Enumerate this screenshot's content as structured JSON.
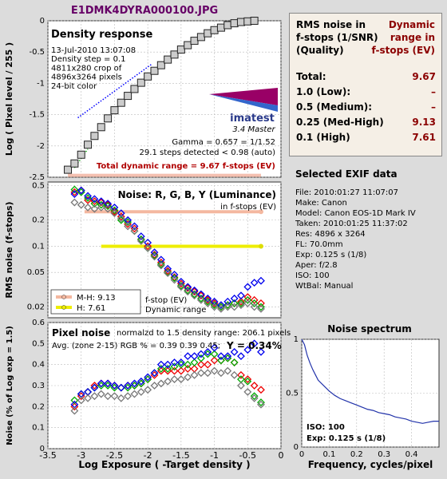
{
  "file_title": "E1DMK4DYRA000100.JPG",
  "chart_data": [
    {
      "type": "scatter",
      "title": "Density response",
      "info_lines": [
        "13-Jul-2010 13:07:08",
        "Density step = 0.1",
        "4811x280 crop of",
        "4896x3264 pixels",
        "24-bit color"
      ],
      "logo_text": "imatest",
      "logo_sub": "3.4  Master",
      "gamma_text": "Gamma = 0.657 = 1/1.52",
      "steps_text": "29.1 steps detected < 0.98 (auto)",
      "dynamic_range_text": "Total dynamic range = 9.67 f-stops (EV)",
      "ylabel": "Log ( Pixel level / 255 )",
      "xlim": [
        -3.5,
        0
      ],
      "ylim": [
        -2.5,
        0
      ],
      "yticks": [
        "0",
        "-0.5",
        "-1",
        "-1.5",
        "-2",
        "-2.5"
      ],
      "x": [
        -3.2,
        -3.1,
        -3.0,
        -2.9,
        -2.8,
        -2.7,
        -2.6,
        -2.5,
        -2.4,
        -2.3,
        -2.2,
        -2.1,
        -2.0,
        -1.9,
        -1.8,
        -1.7,
        -1.6,
        -1.5,
        -1.4,
        -1.3,
        -1.2,
        -1.1,
        -1.0,
        -0.9,
        -0.8,
        -0.7,
        -0.6,
        -0.5,
        -0.4
      ],
      "y": [
        -2.38,
        -2.28,
        -2.14,
        -1.98,
        -1.84,
        -1.7,
        -1.56,
        -1.43,
        -1.31,
        -1.2,
        -1.09,
        -0.99,
        -0.89,
        -0.8,
        -0.71,
        -0.62,
        -0.54,
        -0.46,
        -0.39,
        -0.32,
        -0.26,
        -0.2,
        -0.15,
        -0.11,
        -0.07,
        -0.04,
        -0.02,
        -0.01,
        0.0
      ]
    },
    {
      "type": "scatter",
      "title": "Noise: R, G, B, Y (Luminance)",
      "subtitle": "in f-stops (EV)",
      "ylabel": "RMS noise (f-stops)",
      "yscale": "log",
      "ylim": [
        0.015,
        0.55
      ],
      "yticks": [
        "0.5",
        "0.2",
        "0.1",
        "0.05",
        "0.02"
      ],
      "x": [
        -3.1,
        -3.0,
        -2.9,
        -2.8,
        -2.7,
        -2.6,
        -2.5,
        -2.4,
        -2.3,
        -2.2,
        -2.1,
        -2.0,
        -1.9,
        -1.8,
        -1.7,
        -1.6,
        -1.5,
        -1.4,
        -1.3,
        -1.2,
        -1.1,
        -1.0,
        -0.9,
        -0.8,
        -0.7,
        -0.6,
        -0.5,
        -0.4,
        -0.3
      ],
      "series": [
        {
          "name": "R",
          "color": "#ee0000",
          "values": [
            0.42,
            0.44,
            0.34,
            0.33,
            0.32,
            0.3,
            0.25,
            0.22,
            0.18,
            0.16,
            0.12,
            0.1,
            0.08,
            0.065,
            0.052,
            0.044,
            0.037,
            0.033,
            0.03,
            0.027,
            0.024,
            0.022,
            0.02,
            0.021,
            0.022,
            0.023,
            0.026,
            0.024,
            0.022
          ]
        },
        {
          "name": "G",
          "color": "#00aa00",
          "values": [
            0.45,
            0.42,
            0.36,
            0.31,
            0.3,
            0.29,
            0.26,
            0.2,
            0.19,
            0.15,
            0.12,
            0.095,
            0.078,
            0.062,
            0.05,
            0.043,
            0.035,
            0.031,
            0.028,
            0.025,
            0.023,
            0.021,
            0.02,
            0.021,
            0.022,
            0.022,
            0.024,
            0.022,
            0.02
          ]
        },
        {
          "name": "B",
          "color": "#0000ee",
          "values": [
            0.4,
            0.44,
            0.38,
            0.35,
            0.33,
            0.31,
            0.28,
            0.24,
            0.2,
            0.17,
            0.13,
            0.11,
            0.085,
            0.07,
            0.055,
            0.047,
            0.039,
            0.034,
            0.031,
            0.028,
            0.025,
            0.023,
            0.021,
            0.023,
            0.025,
            0.027,
            0.034,
            0.038,
            0.04
          ]
        },
        {
          "name": "Y",
          "color": "#777777",
          "values": [
            0.32,
            0.3,
            0.28,
            0.27,
            0.28,
            0.27,
            0.24,
            0.21,
            0.17,
            0.15,
            0.115,
            0.095,
            0.076,
            0.06,
            0.049,
            0.041,
            0.034,
            0.03,
            0.027,
            0.024,
            0.022,
            0.02,
            0.019,
            0.02,
            0.02,
            0.021,
            0.022,
            0.02,
            0.019
          ]
        }
      ],
      "legend": [
        {
          "label": "M-H: 9.13",
          "color": "#f4b8a0"
        },
        {
          "label": "H:    7.61",
          "color": "#eeee00"
        }
      ],
      "legend_note": [
        "f-stop (EV)",
        "Dynamic range"
      ]
    },
    {
      "type": "scatter",
      "title": "Pixel noise",
      "subtitle": "normalzd to 1.5 density range: 206.1 pixels",
      "avg_text": "Avg. (zone 2-15) RGB % = 0.39  0.39  0.45;",
      "y_text": "Y = 0.34%",
      "ylabel": "Noise (% of Log exp = 1.5)",
      "xlabel": "Log Exposure ( -Target density )",
      "xlim": [
        -3.5,
        0
      ],
      "ylim": [
        0,
        0.6
      ],
      "xticks": [
        "-3.5",
        "-3",
        "-2.5",
        "-2",
        "-1.5",
        "-1",
        "-0.5",
        "0"
      ],
      "yticks": [
        "0.6",
        "0.5",
        "0.4",
        "0.3",
        "0.2",
        "0.1",
        "0"
      ],
      "x": [
        -3.1,
        -3.0,
        -2.9,
        -2.8,
        -2.7,
        -2.6,
        -2.5,
        -2.4,
        -2.3,
        -2.2,
        -2.1,
        -2.0,
        -1.9,
        -1.8,
        -1.7,
        -1.6,
        -1.5,
        -1.4,
        -1.3,
        -1.2,
        -1.1,
        -1.0,
        -0.9,
        -0.8,
        -0.7,
        -0.6,
        -0.5,
        -0.4,
        -0.3
      ],
      "series": [
        {
          "name": "R",
          "color": "#ee0000",
          "values": [
            0.2,
            0.25,
            0.27,
            0.3,
            0.31,
            0.31,
            0.3,
            0.29,
            0.3,
            0.3,
            0.31,
            0.33,
            0.35,
            0.37,
            0.37,
            0.37,
            0.37,
            0.38,
            0.38,
            0.4,
            0.4,
            0.42,
            0.42,
            0.43,
            0.41,
            0.35,
            0.33,
            0.3,
            0.28
          ]
        },
        {
          "name": "G",
          "color": "#00aa00",
          "values": [
            0.23,
            0.26,
            0.27,
            0.29,
            0.3,
            0.3,
            0.29,
            0.29,
            0.29,
            0.3,
            0.31,
            0.33,
            0.36,
            0.38,
            0.38,
            0.39,
            0.4,
            0.4,
            0.41,
            0.43,
            0.45,
            0.45,
            0.42,
            0.43,
            0.41,
            0.33,
            0.32,
            0.25,
            0.22
          ]
        },
        {
          "name": "B",
          "color": "#0000ee",
          "values": [
            0.21,
            0.26,
            0.27,
            0.29,
            0.31,
            0.31,
            0.3,
            0.29,
            0.3,
            0.31,
            0.32,
            0.34,
            0.36,
            0.4,
            0.4,
            0.41,
            0.41,
            0.44,
            0.44,
            0.45,
            0.46,
            0.48,
            0.44,
            0.44,
            0.46,
            0.44,
            0.47,
            0.5,
            0.46
          ]
        },
        {
          "name": "Y",
          "color": "#777777",
          "values": [
            0.18,
            0.23,
            0.24,
            0.25,
            0.26,
            0.25,
            0.25,
            0.24,
            0.25,
            0.26,
            0.27,
            0.28,
            0.3,
            0.31,
            0.32,
            0.33,
            0.33,
            0.34,
            0.35,
            0.36,
            0.36,
            0.37,
            0.36,
            0.37,
            0.35,
            0.3,
            0.27,
            0.24,
            0.21
          ]
        }
      ]
    },
    {
      "type": "line",
      "title": "Noise spectrum",
      "xlabel": "Frequency, cycles/pixel",
      "xlim": [
        0,
        0.5
      ],
      "ylim": [
        0,
        1
      ],
      "xticks": [
        "0",
        "0.1",
        "0.2",
        "0.3",
        "0.4"
      ],
      "yticks": [
        "1",
        "0.5",
        "0"
      ],
      "x": [
        0,
        0.01,
        0.02,
        0.03,
        0.04,
        0.05,
        0.06,
        0.08,
        0.1,
        0.12,
        0.14,
        0.16,
        0.18,
        0.2,
        0.22,
        0.24,
        0.26,
        0.28,
        0.3,
        0.32,
        0.34,
        0.36,
        0.38,
        0.4,
        0.42,
        0.44,
        0.46,
        0.48,
        0.5
      ],
      "y": [
        1.0,
        0.95,
        0.85,
        0.78,
        0.72,
        0.67,
        0.62,
        0.57,
        0.52,
        0.48,
        0.45,
        0.43,
        0.41,
        0.39,
        0.37,
        0.35,
        0.34,
        0.32,
        0.31,
        0.3,
        0.28,
        0.27,
        0.26,
        0.24,
        0.23,
        0.22,
        0.23,
        0.24,
        0.24
      ],
      "color": "#2233aa",
      "iso_text": "ISO:   100",
      "exp_text": "Exp:  0.125 s  (1/8)"
    }
  ],
  "rms_box": {
    "left_header": [
      "RMS noise in",
      "f-stops (1/SNR)",
      "(Quality)"
    ],
    "right_header": [
      "Dynamic",
      "range in",
      "f-stops (EV)"
    ],
    "rows": [
      {
        "label": "Total:",
        "value": "9.67"
      },
      {
        "label": "1.0  (Low):",
        "value": "–"
      },
      {
        "label": "0.5  (Medium):",
        "value": "–"
      },
      {
        "label": "0.25 (Med-High)",
        "value": "9.13"
      },
      {
        "label": "0.1   (High)",
        "value": "7.61"
      }
    ]
  },
  "exif": {
    "title": "Selected EXIF data",
    "lines": [
      "File:  2010:01:27 11:07:07",
      "Make:  Canon",
      "Model: Canon EOS-1D Mark IV",
      "Taken:  2010:01:25 11:37:02",
      "Res:   4896 x 3264",
      "FL:  70.0mm",
      "Exp:  0.125 s  (1/8)",
      "Aper:  f/2.8",
      "ISO:  100",
      "WtBal: Manual"
    ]
  }
}
